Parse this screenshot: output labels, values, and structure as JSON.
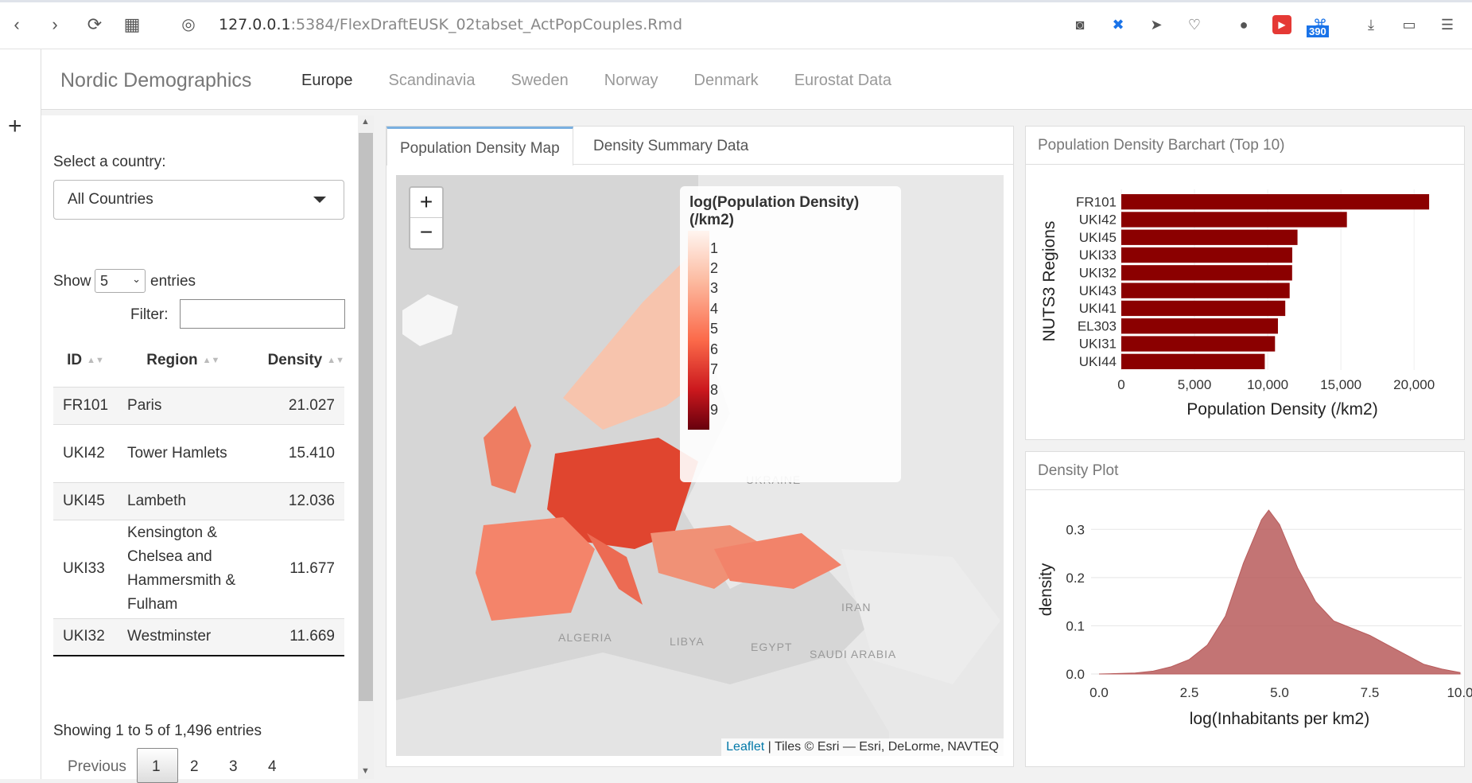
{
  "browser": {
    "url_host": "127.0.0.1",
    "url_rest": ":5384/FlexDraftEUSK_02tabset_ActPopCouples.Rmd",
    "badge": "390"
  },
  "navbar": {
    "brand": "Nordic Demographics",
    "tabs": [
      "Europe",
      "Scandinavia",
      "Sweden",
      "Norway",
      "Denmark",
      "Eurostat Data"
    ],
    "active_tab": "Europe"
  },
  "left": {
    "select_label": "Select a country:",
    "select_value": "All Countries",
    "show_label": "Show",
    "entries_value": "5",
    "entries_label": "entries",
    "filter_label": "Filter:",
    "columns": [
      "ID",
      "Region",
      "Density"
    ],
    "rows": [
      {
        "id": "FR101",
        "region": "Paris",
        "density": "21.027"
      },
      {
        "id": "UKI42",
        "region": "Tower Hamlets",
        "density": "15.410"
      },
      {
        "id": "UKI45",
        "region": "Lambeth",
        "density": "12.036"
      },
      {
        "id": "UKI33",
        "region": "Kensington & Chelsea and Hammersmith & Fulham",
        "density": "11.677"
      },
      {
        "id": "UKI32",
        "region": "Westminster",
        "density": "11.669"
      }
    ],
    "info": "Showing 1 to 5 of 1,496 entries",
    "pager": {
      "previous": "Previous",
      "pages": [
        "1",
        "2",
        "3",
        "4"
      ]
    }
  },
  "map_card": {
    "tabs": [
      "Population Density Map",
      "Density Summary Data"
    ],
    "legend_title": "log(Population Density) (/km2)",
    "legend_ticks": [
      "1",
      "2",
      "3",
      "4",
      "5",
      "6",
      "7",
      "8",
      "9"
    ],
    "labels": [
      "UKRAINE",
      "IRAN",
      "ALGERIA",
      "LIBYA",
      "EGYPT",
      "SAUDI ARABIA"
    ],
    "attribution_link": "Leaflet",
    "attribution_text": " | Tiles © Esri — Esri, DeLorme, NAVTEQ"
  },
  "bar_card": {
    "title": "Population Density Barchart (Top 10)"
  },
  "density_card": {
    "title": "Density Plot"
  },
  "chart_data": [
    {
      "type": "bar",
      "orientation": "horizontal",
      "categories": [
        "FR101",
        "UKI42",
        "UKI45",
        "UKI33",
        "UKI32",
        "UKI43",
        "UKI41",
        "EL303",
        "UKI31",
        "UKI44"
      ],
      "values": [
        21027,
        15410,
        12036,
        11677,
        11669,
        11500,
        11200,
        10700,
        10500,
        9800
      ],
      "xlabel": "Population Density (/km2)",
      "ylabel": "NUTS3 Regions",
      "xlim": [
        0,
        22000
      ],
      "xticks": [
        "0",
        "5,000",
        "10,000",
        "15,000",
        "20,000"
      ],
      "color": "#8b0000"
    },
    {
      "type": "area",
      "x": [
        0.0,
        1.0,
        1.5,
        2.0,
        2.5,
        3.0,
        3.5,
        4.0,
        4.5,
        4.7,
        5.0,
        5.5,
        6.0,
        6.5,
        7.0,
        7.5,
        8.0,
        8.5,
        9.0,
        9.5,
        10.0
      ],
      "y": [
        0.0,
        0.002,
        0.006,
        0.015,
        0.03,
        0.06,
        0.12,
        0.23,
        0.32,
        0.34,
        0.31,
        0.22,
        0.15,
        0.11,
        0.095,
        0.08,
        0.06,
        0.04,
        0.02,
        0.01,
        0.003
      ],
      "xlabel": "log(Inhabitants per km2)",
      "ylabel": "density",
      "xlim": [
        0,
        10
      ],
      "ylim": [
        0,
        0.35
      ],
      "xticks": [
        "0.0",
        "2.5",
        "5.0",
        "7.5",
        "10.0"
      ],
      "yticks": [
        "0.0",
        "0.1",
        "0.2",
        "0.3"
      ],
      "color": "#b85c5c"
    }
  ]
}
